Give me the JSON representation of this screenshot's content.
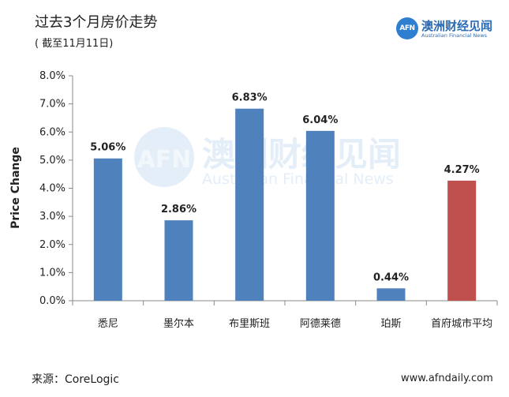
{
  "header": {
    "title": "过去3个月房价走势",
    "subtitle": "( 截至11月11日)"
  },
  "logo": {
    "mark": "AFN",
    "name_cn": "澳洲财经见闻",
    "name_en": "Australian Financial News"
  },
  "watermark": {
    "mark": "AFN",
    "name_cn": "澳洲财经见闻",
    "name_en": "Australian Financial News"
  },
  "footer": {
    "source": "来源：CoreLogic",
    "website": "www.afndaily.com"
  },
  "colors": {
    "bar_primary": "#4f81bd",
    "bar_highlight": "#c0504d"
  },
  "chart_data": {
    "type": "bar",
    "categories": [
      "悉尼",
      "墨尔本",
      "布里斯班",
      "阿德莱德",
      "珀斯",
      "首府城市平均"
    ],
    "values": [
      5.06,
      2.86,
      6.83,
      6.04,
      0.44,
      4.27
    ],
    "data_labels": [
      "5.06%",
      "2.86%",
      "6.83%",
      "6.04%",
      "0.44%",
      "4.27%"
    ],
    "highlight_index": 5,
    "ylabel": "Price Change",
    "xlabel": "",
    "ylim": [
      0,
      8
    ],
    "yticks": [
      0,
      1,
      2,
      3,
      4,
      5,
      6,
      7,
      8
    ],
    "ytick_labels": [
      "0.0%",
      "1.0%",
      "2.0%",
      "3.0%",
      "4.0%",
      "5.0%",
      "6.0%",
      "7.0%",
      "8.0%"
    ],
    "grid": false,
    "legend": "none"
  }
}
